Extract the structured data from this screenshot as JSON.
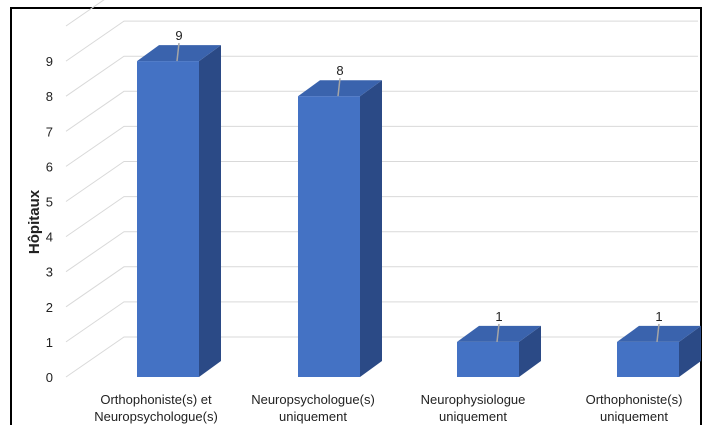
{
  "chart_data": {
    "type": "bar",
    "style": "3d-column",
    "title": "",
    "xlabel": "",
    "ylabel": "Hôpitaux",
    "ylim": [
      0,
      10
    ],
    "yticks": [
      0,
      1,
      2,
      3,
      4,
      5,
      6,
      7,
      8,
      9
    ],
    "grid": true,
    "legend": "none",
    "categories": [
      [
        "Orthophoniste(s) et",
        "Neuropsychologue(s)"
      ],
      [
        "Neuropsychologue(s)",
        "uniquement"
      ],
      [
        "Neurophysiologue",
        "uniquement"
      ],
      [
        "Orthophoniste(s)",
        "uniquement"
      ]
    ],
    "values": [
      9,
      8,
      1,
      1
    ],
    "data_labels": [
      "9",
      "8",
      "1",
      "1"
    ],
    "colors": {
      "bar_front": "#4472C4",
      "bar_top": "#3a63ad",
      "bar_side": "#2b4a86",
      "gridline": "#d9d9d9",
      "frame": "#000000",
      "leader": "#a6a6a6"
    }
  }
}
